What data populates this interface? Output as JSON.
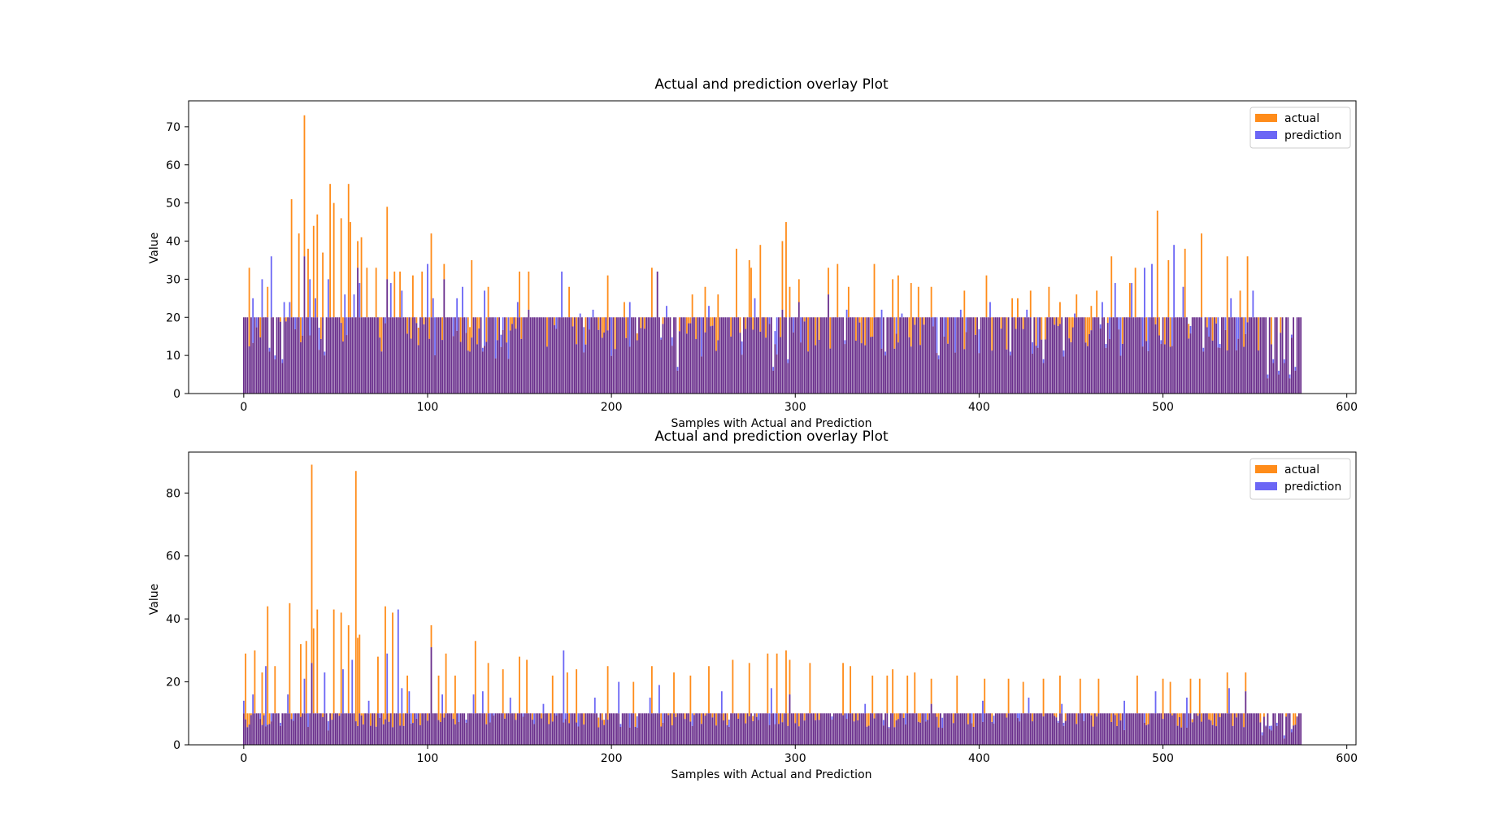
{
  "colors": {
    "actual": "#ff8c1a",
    "prediction": "#6b66f5",
    "overlap": "#6a2f8c",
    "axis": "#000000",
    "background": "#ffffff"
  },
  "chart_data": [
    {
      "type": "bar",
      "title": "Actual and prediction overlay Plot",
      "xlabel": "Samples with Actual and Prediction",
      "ylabel": "Value",
      "xlim": [
        -30,
        605
      ],
      "ylim": [
        0,
        76.8
      ],
      "xticks": [
        0,
        100,
        200,
        300,
        400,
        500,
        600
      ],
      "yticks": [
        0,
        10,
        20,
        30,
        40,
        50,
        60,
        70
      ],
      "legend_position": "top-right",
      "grid": false,
      "n_samples": 576,
      "baseline_value": 20,
      "peaks": {
        "actual": [
          [
            3,
            33
          ],
          [
            13,
            28
          ],
          [
            26,
            51
          ],
          [
            30,
            42
          ],
          [
            33,
            73
          ],
          [
            35,
            38
          ],
          [
            38,
            44
          ],
          [
            40,
            47
          ],
          [
            43,
            37
          ],
          [
            47,
            55
          ],
          [
            49,
            50
          ],
          [
            53,
            46
          ],
          [
            57,
            55
          ],
          [
            58,
            45
          ],
          [
            62,
            40
          ],
          [
            64,
            41
          ],
          [
            67,
            33
          ],
          [
            72,
            33
          ],
          [
            78,
            49
          ],
          [
            82,
            32
          ],
          [
            85,
            32
          ],
          [
            92,
            31
          ],
          [
            97,
            32
          ],
          [
            102,
            42
          ],
          [
            109,
            34
          ],
          [
            124,
            35
          ],
          [
            133,
            28
          ],
          [
            150,
            32
          ],
          [
            155,
            32
          ],
          [
            177,
            28
          ],
          [
            198,
            31
          ],
          [
            207,
            24
          ],
          [
            222,
            33
          ],
          [
            225,
            32
          ],
          [
            244,
            26
          ],
          [
            251,
            28
          ],
          [
            258,
            26
          ],
          [
            268,
            38
          ],
          [
            275,
            35
          ],
          [
            276,
            33
          ],
          [
            281,
            39
          ],
          [
            293,
            40
          ],
          [
            295,
            45
          ],
          [
            297,
            28
          ],
          [
            302,
            30
          ],
          [
            318,
            33
          ],
          [
            323,
            34
          ],
          [
            329,
            28
          ],
          [
            343,
            34
          ],
          [
            349,
            31
          ],
          [
            353,
            30
          ],
          [
            356,
            31
          ],
          [
            363,
            29
          ],
          [
            367,
            28
          ],
          [
            374,
            28
          ],
          [
            392,
            27
          ],
          [
            404,
            31
          ],
          [
            418,
            25
          ],
          [
            421,
            25
          ],
          [
            428,
            27
          ],
          [
            438,
            28
          ],
          [
            444,
            24
          ],
          [
            453,
            26
          ],
          [
            461,
            23
          ],
          [
            464,
            27
          ],
          [
            472,
            36
          ],
          [
            482,
            29
          ],
          [
            485,
            33
          ],
          [
            497,
            48
          ],
          [
            503,
            35
          ],
          [
            512,
            38
          ],
          [
            521,
            42
          ],
          [
            535,
            36
          ],
          [
            542,
            27
          ],
          [
            546,
            36
          ]
        ],
        "prediction": [
          [
            5,
            25
          ],
          [
            10,
            30
          ],
          [
            15,
            36
          ],
          [
            22,
            24
          ],
          [
            25,
            24
          ],
          [
            28,
            20
          ],
          [
            33,
            36
          ],
          [
            36,
            30
          ],
          [
            39,
            25
          ],
          [
            46,
            30
          ],
          [
            55,
            26
          ],
          [
            60,
            26
          ],
          [
            62,
            33
          ],
          [
            63,
            29
          ],
          [
            78,
            30
          ],
          [
            80,
            29
          ],
          [
            86,
            27
          ],
          [
            100,
            34
          ],
          [
            103,
            25
          ],
          [
            109,
            30
          ],
          [
            116,
            25
          ],
          [
            119,
            28
          ],
          [
            131,
            27
          ],
          [
            149,
            24
          ],
          [
            155,
            22
          ],
          [
            173,
            32
          ],
          [
            183,
            21
          ],
          [
            190,
            22
          ],
          [
            210,
            24
          ],
          [
            225,
            32
          ],
          [
            230,
            23
          ],
          [
            253,
            23
          ],
          [
            278,
            25
          ],
          [
            293,
            22
          ],
          [
            302,
            24
          ],
          [
            318,
            26
          ],
          [
            328,
            22
          ],
          [
            347,
            22
          ],
          [
            358,
            21
          ],
          [
            377,
            20
          ],
          [
            390,
            22
          ],
          [
            406,
            24
          ],
          [
            426,
            22
          ],
          [
            452,
            21
          ],
          [
            467,
            24
          ],
          [
            474,
            29
          ],
          [
            483,
            29
          ],
          [
            490,
            33
          ],
          [
            494,
            34
          ],
          [
            506,
            39
          ],
          [
            511,
            28
          ],
          [
            522,
            24
          ],
          [
            537,
            25
          ],
          [
            549,
            27
          ]
        ],
        "dips": [
          [
            14,
            11
          ],
          [
            17,
            9
          ],
          [
            21,
            8
          ],
          [
            44,
            10
          ],
          [
            130,
            11
          ],
          [
            236,
            6
          ],
          [
            288,
            6
          ],
          [
            296,
            8
          ],
          [
            327,
            13
          ],
          [
            349,
            10
          ],
          [
            378,
            9
          ],
          [
            417,
            10
          ],
          [
            435,
            8
          ],
          [
            469,
            12
          ],
          [
            499,
            13
          ],
          [
            522,
            11
          ],
          [
            531,
            12
          ],
          [
            557,
            4
          ],
          [
            560,
            8
          ],
          [
            563,
            5
          ],
          [
            566,
            8
          ],
          [
            569,
            4
          ],
          [
            572,
            6
          ]
        ]
      }
    },
    {
      "type": "bar",
      "title": "Actual and prediction overlay Plot",
      "xlabel": "Samples with Actual and Prediction",
      "ylabel": "Value",
      "xlim": [
        -30,
        605
      ],
      "ylim": [
        0,
        93
      ],
      "xticks": [
        0,
        100,
        200,
        300,
        400,
        500,
        600
      ],
      "yticks": [
        0,
        20,
        40,
        60,
        80
      ],
      "legend_position": "top-right",
      "grid": false,
      "n_samples": 576,
      "baseline_value": 10,
      "peaks": {
        "actual": [
          [
            1,
            29
          ],
          [
            6,
            30
          ],
          [
            10,
            23
          ],
          [
            13,
            44
          ],
          [
            17,
            25
          ],
          [
            25,
            45
          ],
          [
            31,
            32
          ],
          [
            34,
            33
          ],
          [
            37,
            89
          ],
          [
            38,
            37
          ],
          [
            40,
            43
          ],
          [
            49,
            43
          ],
          [
            53,
            42
          ],
          [
            57,
            38
          ],
          [
            61,
            87
          ],
          [
            62,
            34
          ],
          [
            63,
            35
          ],
          [
            73,
            28
          ],
          [
            77,
            44
          ],
          [
            81,
            42
          ],
          [
            89,
            22
          ],
          [
            102,
            38
          ],
          [
            106,
            22
          ],
          [
            110,
            29
          ],
          [
            115,
            22
          ],
          [
            126,
            33
          ],
          [
            133,
            26
          ],
          [
            141,
            24
          ],
          [
            150,
            28
          ],
          [
            154,
            27
          ],
          [
            168,
            22
          ],
          [
            176,
            23
          ],
          [
            181,
            24
          ],
          [
            198,
            25
          ],
          [
            212,
            20
          ],
          [
            222,
            25
          ],
          [
            234,
            23
          ],
          [
            243,
            22
          ],
          [
            253,
            25
          ],
          [
            266,
            27
          ],
          [
            275,
            26
          ],
          [
            285,
            29
          ],
          [
            290,
            29
          ],
          [
            295,
            30
          ],
          [
            297,
            27
          ],
          [
            308,
            26
          ],
          [
            320,
            24
          ],
          [
            326,
            26
          ],
          [
            330,
            25
          ],
          [
            342,
            22
          ],
          [
            350,
            22
          ],
          [
            353,
            24
          ],
          [
            361,
            22
          ],
          [
            365,
            23
          ],
          [
            374,
            21
          ],
          [
            388,
            22
          ],
          [
            403,
            21
          ],
          [
            416,
            21
          ],
          [
            424,
            20
          ],
          [
            435,
            21
          ],
          [
            444,
            22
          ],
          [
            455,
            21
          ],
          [
            465,
            21
          ],
          [
            486,
            22
          ],
          [
            500,
            21
          ],
          [
            504,
            20
          ],
          [
            515,
            21
          ],
          [
            520,
            21
          ],
          [
            535,
            23
          ],
          [
            545,
            23
          ]
        ],
        "prediction": [
          [
            0,
            14
          ],
          [
            5,
            16
          ],
          [
            12,
            25
          ],
          [
            24,
            16
          ],
          [
            33,
            21
          ],
          [
            37,
            26
          ],
          [
            44,
            23
          ],
          [
            54,
            24
          ],
          [
            59,
            27
          ],
          [
            68,
            14
          ],
          [
            78,
            29
          ],
          [
            84,
            43
          ],
          [
            86,
            18
          ],
          [
            90,
            17
          ],
          [
            102,
            31
          ],
          [
            108,
            16
          ],
          [
            125,
            16
          ],
          [
            130,
            17
          ],
          [
            145,
            15
          ],
          [
            163,
            13
          ],
          [
            174,
            30
          ],
          [
            191,
            15
          ],
          [
            204,
            20
          ],
          [
            221,
            15
          ],
          [
            226,
            19
          ],
          [
            260,
            17
          ],
          [
            287,
            18
          ],
          [
            297,
            16
          ],
          [
            338,
            13
          ],
          [
            374,
            13
          ],
          [
            402,
            14
          ],
          [
            427,
            15
          ],
          [
            445,
            13
          ],
          [
            479,
            14
          ],
          [
            496,
            17
          ],
          [
            513,
            15
          ],
          [
            536,
            18
          ],
          [
            545,
            17
          ]
        ],
        "dips": [
          [
            20,
            6
          ],
          [
            121,
            7
          ],
          [
            320,
            8
          ],
          [
            446,
            6
          ],
          [
            554,
            3
          ],
          [
            558,
            5
          ],
          [
            562,
            6
          ],
          [
            566,
            2
          ],
          [
            570,
            4
          ]
        ]
      }
    }
  ]
}
